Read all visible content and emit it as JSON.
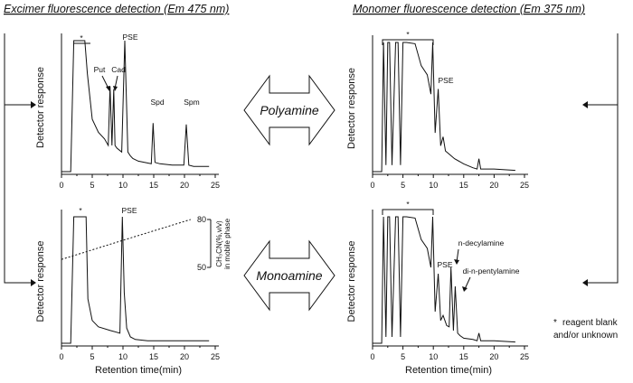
{
  "headers": {
    "left": "Excimer fluorescence detection (Em 475 nm)",
    "right": "Monomer fluorescence detection (Em 375 nm)"
  },
  "center_labels": {
    "top": "Polyamine",
    "bottom": "Monoamine"
  },
  "legend_note": {
    "line1": "reagent blank",
    "line2": "and/or unknown",
    "symbol": "*"
  },
  "gradient_axis": {
    "label_line1": "CH₃CN(%,v/v)",
    "label_line2": "in mobile phase",
    "ticks": [
      "80",
      "50"
    ]
  },
  "chart_data": [
    {
      "type": "line",
      "panel": "top-left",
      "xlabel": "",
      "ylabel": "Detector response",
      "xlim": [
        0,
        25
      ],
      "xticks": [
        "0",
        "5",
        "10",
        "15",
        "20",
        "25"
      ],
      "peaks": [
        "*",
        "Put",
        "Cad",
        "PSE",
        "Spd",
        "Spm"
      ],
      "x": [
        0,
        1.5,
        2,
        3.8,
        4.2,
        5,
        6,
        7,
        7.6,
        7.9,
        8.2,
        8.5,
        8.7,
        9,
        9.8,
        10.3,
        10.8,
        11.2,
        11.6,
        12.5,
        13.5,
        14.6,
        14.9,
        15.2,
        16,
        18,
        19.9,
        20.3,
        20.7,
        21.5,
        24
      ],
      "values": [
        0,
        0,
        100,
        100,
        75,
        40,
        30,
        25,
        20,
        65,
        20,
        63,
        20,
        18,
        15,
        100,
        15,
        12,
        10,
        8,
        7,
        6,
        37,
        7,
        6,
        5,
        5,
        36,
        5,
        4,
        4
      ]
    },
    {
      "type": "line",
      "panel": "top-right",
      "xlabel": "",
      "ylabel": "Detector response",
      "xlim": [
        0,
        25
      ],
      "xticks": [
        "0",
        "5",
        "10",
        "15",
        "20",
        "25"
      ],
      "peaks": [
        "*",
        "PSE"
      ],
      "x": [
        0,
        1.5,
        1.8,
        2.2,
        2.5,
        2.8,
        3.2,
        3.8,
        4.2,
        4.6,
        5,
        5.6,
        7,
        8,
        9,
        9.6,
        9.9,
        10.3,
        10.8,
        11.2,
        11.6,
        12,
        12.5,
        13.5,
        15,
        16.5,
        17.2,
        17.5,
        17.8,
        20,
        23.5
      ],
      "values": [
        0,
        0,
        100,
        5,
        100,
        100,
        5,
        100,
        100,
        5,
        100,
        100,
        99,
        82,
        75,
        60,
        100,
        30,
        64,
        20,
        27,
        16,
        14,
        10,
        6,
        3,
        2,
        10,
        2,
        2,
        1
      ]
    },
    {
      "type": "line",
      "panel": "bottom-left",
      "xlabel": "Retention time(min)",
      "ylabel": "Detector response",
      "xlim": [
        0,
        25
      ],
      "xticks": [
        "0",
        "5",
        "10",
        "15",
        "20",
        "25"
      ],
      "peaks": [
        "*",
        "PSE"
      ],
      "gradient": {
        "x": [
          0,
          10,
          21
        ],
        "values": [
          55,
          67,
          80
        ]
      },
      "x": [
        0,
        1.5,
        2,
        4,
        4.3,
        5,
        6,
        8,
        9.5,
        9.9,
        10.2,
        10.6,
        11.2,
        12,
        14,
        18,
        24
      ],
      "values": [
        0,
        0,
        100,
        100,
        35,
        18,
        13,
        10,
        8,
        100,
        40,
        12,
        5,
        3,
        2,
        2,
        2
      ]
    },
    {
      "type": "line",
      "panel": "bottom-right",
      "xlabel": "Retention time(min)",
      "ylabel": "Detector response",
      "xlim": [
        0,
        25
      ],
      "xticks": [
        "0",
        "5",
        "10",
        "15",
        "20",
        "25"
      ],
      "peaks": [
        "*",
        "PSE",
        "n-decylamine",
        "di-n-pentylamine"
      ],
      "x": [
        0,
        1.5,
        1.8,
        2.2,
        2.5,
        2.8,
        3.2,
        3.8,
        4.2,
        4.6,
        5,
        5.6,
        7,
        8,
        9,
        9.6,
        9.9,
        10.3,
        10.8,
        11.2,
        11.6,
        12.2,
        12.6,
        12.9,
        13.3,
        13.6,
        14,
        14.4,
        15,
        16.5,
        17.2,
        17.5,
        17.8,
        20,
        23.5
      ],
      "values": [
        0,
        0,
        100,
        5,
        100,
        100,
        5,
        100,
        100,
        5,
        100,
        100,
        99,
        82,
        75,
        60,
        100,
        25,
        55,
        18,
        22,
        14,
        13,
        60,
        10,
        45,
        8,
        6,
        4,
        3,
        2,
        8,
        2,
        2,
        1
      ]
    }
  ]
}
